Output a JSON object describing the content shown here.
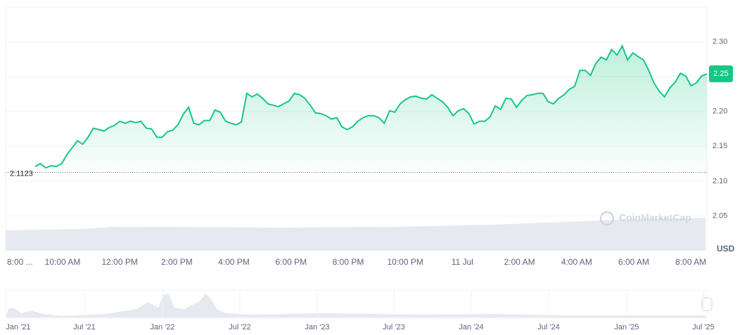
{
  "chart_data": {
    "type": "line",
    "series": [
      {
        "name": "USD",
        "color": "#16c784",
        "values": [
          2.121,
          2.125,
          2.119,
          2.122,
          2.121,
          2.125,
          2.138,
          2.148,
          2.158,
          2.153,
          2.163,
          2.176,
          2.174,
          2.172,
          2.177,
          2.18,
          2.186,
          2.183,
          2.186,
          2.184,
          2.186,
          2.176,
          2.175,
          2.163,
          2.163,
          2.171,
          2.173,
          2.181,
          2.196,
          2.206,
          2.183,
          2.181,
          2.187,
          2.187,
          2.202,
          2.199,
          2.186,
          2.183,
          2.181,
          2.185,
          2.226,
          2.221,
          2.225,
          2.219,
          2.211,
          2.209,
          2.207,
          2.211,
          2.215,
          2.226,
          2.224,
          2.219,
          2.209,
          2.198,
          2.197,
          2.194,
          2.189,
          2.191,
          2.178,
          2.174,
          2.178,
          2.186,
          2.191,
          2.194,
          2.194,
          2.191,
          2.183,
          2.201,
          2.199,
          2.211,
          2.217,
          2.221,
          2.222,
          2.219,
          2.218,
          2.224,
          2.219,
          2.214,
          2.206,
          2.194,
          2.201,
          2.204,
          2.197,
          2.182,
          2.186,
          2.186,
          2.192,
          2.208,
          2.203,
          2.219,
          2.218,
          2.206,
          2.216,
          2.223,
          2.224,
          2.226,
          2.226,
          2.214,
          2.211,
          2.219,
          2.224,
          2.232,
          2.236,
          2.259,
          2.259,
          2.252,
          2.269,
          2.278,
          2.274,
          2.289,
          2.281,
          2.294,
          2.274,
          2.284,
          2.279,
          2.274,
          2.259,
          2.241,
          2.229,
          2.221,
          2.234,
          2.242,
          2.255,
          2.251,
          2.237,
          2.241,
          2.251,
          2.254
        ]
      }
    ],
    "x_labels": [
      "8:00 ...",
      "10:00 AM",
      "12:00 PM",
      "2:00 PM",
      "4:00 PM",
      "6:00 PM",
      "8:00 PM",
      "10:00 PM",
      "11 Jul",
      "2:00 AM",
      "4:00 AM",
      "6:00 AM",
      "8:00 AM"
    ],
    "ylim": [
      2.0,
      2.35
    ],
    "yticks": [
      {
        "value": 2.3,
        "label": "2.30"
      },
      2.25,
      {
        "value": 2.2,
        "label": "2.20"
      },
      2.15,
      {
        "value": 2.1,
        "label": "2.10"
      },
      2.05
    ],
    "y_unit": "USD",
    "baseline": 2.1123,
    "current_price": {
      "value": 2.254,
      "label": "2.25"
    },
    "watermark": "CoinMarketCap",
    "navigator_labels": [
      "Jan '21",
      "Jul '21",
      "Jan '22",
      "Jul '22",
      "Jan '23",
      "Jul '23",
      "Jan '24",
      "Jul '24",
      "Jan '25",
      "Jul '25"
    ],
    "grid": true
  }
}
